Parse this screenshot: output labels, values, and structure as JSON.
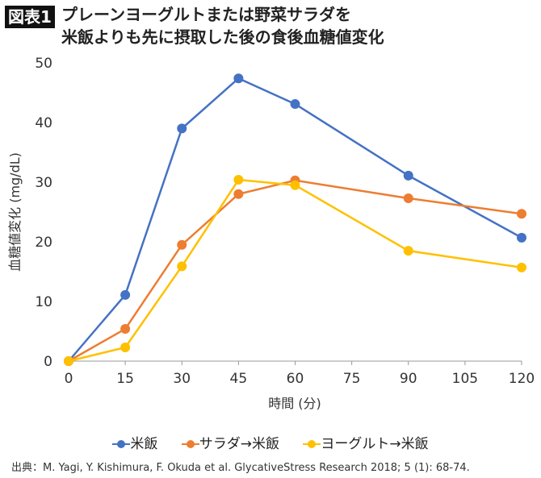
{
  "figure_label": "図表1",
  "title_lines": [
    "プレーンヨーグルトまたは野菜サラダを",
    "米飯よりも先に摂取した後の食後血糖値変化"
  ],
  "source": "出典：M. Yagi, Y. Kishimura, F. Okuda et al. GlycativeStress Research 2018; 5 (1): 68-74.",
  "chart_data": {
    "type": "line",
    "title": "プレーンヨーグルトまたは野菜サラダを米飯よりも先に摂取した後の食後血糖値変化",
    "xlabel": "時間 (分)",
    "ylabel": "血糖値変化 (mg/dL)",
    "x": [
      0,
      15,
      30,
      45,
      60,
      90,
      120
    ],
    "xticks": [
      0,
      15,
      30,
      45,
      60,
      75,
      90,
      105,
      120
    ],
    "yticks": [
      0,
      10,
      20,
      30,
      40,
      50
    ],
    "xlim": [
      0,
      120
    ],
    "ylim": [
      0,
      50
    ],
    "grid": false,
    "legend_position": "bottom",
    "series": [
      {
        "name": "米飯",
        "color": "#4472C4",
        "values": [
          0,
          11.1,
          39.0,
          47.4,
          43.1,
          31.1,
          20.7
        ]
      },
      {
        "name": "サラダ→米飯",
        "color": "#ED7D31",
        "values": [
          0,
          5.4,
          19.5,
          28.0,
          30.3,
          27.3,
          24.7
        ]
      },
      {
        "name": "ヨーグルト→米飯",
        "color": "#FFC000",
        "values": [
          0,
          2.3,
          15.9,
          30.4,
          29.5,
          18.5,
          15.7
        ]
      }
    ]
  }
}
